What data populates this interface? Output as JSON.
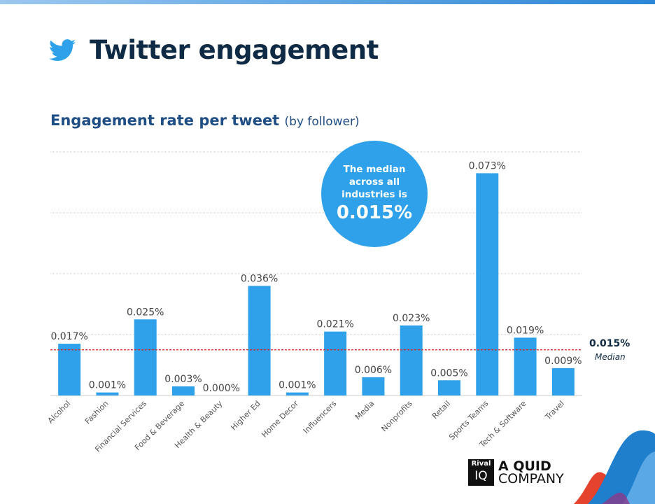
{
  "header": {
    "title": "Twitter engagement",
    "icon": "twitter-bird-icon"
  },
  "callout": {
    "text": "The median across all industries is",
    "value": "0.015%"
  },
  "median": {
    "label": "0.015%",
    "sub": "Median"
  },
  "logo": {
    "brand": "Rival IQ",
    "tagline_1": "A QUID",
    "tagline_2": "COMPANY"
  },
  "chart_data": {
    "type": "bar",
    "title": "Engagement rate per tweet",
    "subtitle": "(by follower)",
    "categories": [
      "Alcohol",
      "Fashion",
      "Financial Services",
      "Food & Beverage",
      "Health & Beauty",
      "Higher Ed",
      "Home Decor",
      "Influencers",
      "Media",
      "Nonprofits",
      "Retail",
      "Sports Teams",
      "Tech & Software",
      "Travel"
    ],
    "values": [
      0.017,
      0.001,
      0.025,
      0.003,
      0.0,
      0.036,
      0.001,
      0.021,
      0.006,
      0.023,
      0.005,
      0.073,
      0.019,
      0.009
    ],
    "data_labels": [
      "0.017%",
      "0.001%",
      "0.025%",
      "0.003%",
      "0.000%",
      "0.036%",
      "0.001%",
      "0.021%",
      "0.006%",
      "0.023%",
      "0.005%",
      "0.073%",
      "0.019%",
      "0.009%"
    ],
    "median_line": 0.015,
    "ylim": [
      0,
      0.08
    ],
    "grid": true,
    "bar_color": "#2ea1ea",
    "median_color": "#e02020"
  }
}
